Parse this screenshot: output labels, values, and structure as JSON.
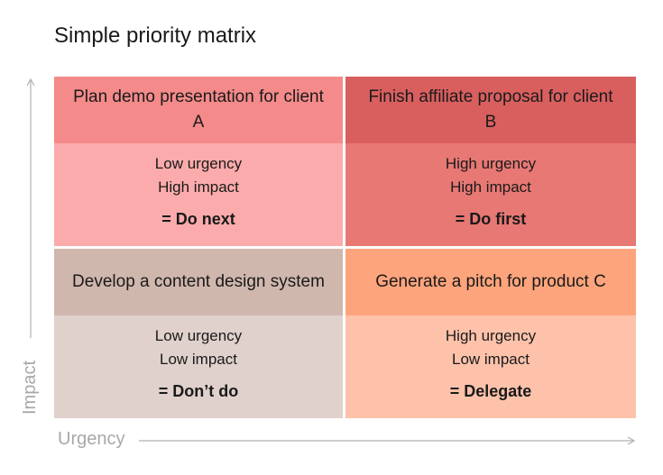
{
  "title": "Simple priority matrix",
  "axes": {
    "x_label": "Urgency",
    "y_label": "Impact"
  },
  "colors": {
    "axis": "#b0b0b0",
    "do_next_head": "#f48a8a",
    "do_next_body": "#fbabab",
    "do_first_head": "#d95f5f",
    "do_first_body": "#e87874",
    "dont_do_head": "#d0b7ad",
    "dont_do_body": "#e0d1cc",
    "delegate_head": "#fda47c",
    "delegate_body": "#fec2aa"
  },
  "quadrants": {
    "do_next": {
      "task": "Plan demo presentation for client A",
      "urgency": "Low urgency",
      "impact": "High impact",
      "verdict": "= Do next"
    },
    "do_first": {
      "task": "Finish affiliate proposal for client B",
      "urgency": "High urgency",
      "impact": "High impact",
      "verdict": "= Do first"
    },
    "dont_do": {
      "task": "Develop a content design system",
      "urgency": "Low urgency",
      "impact": "Low impact",
      "verdict": "= Don’t do"
    },
    "delegate": {
      "task": "Generate a pitch for product C",
      "urgency": "High urgency",
      "impact": "Low impact",
      "verdict": "= Delegate"
    }
  }
}
